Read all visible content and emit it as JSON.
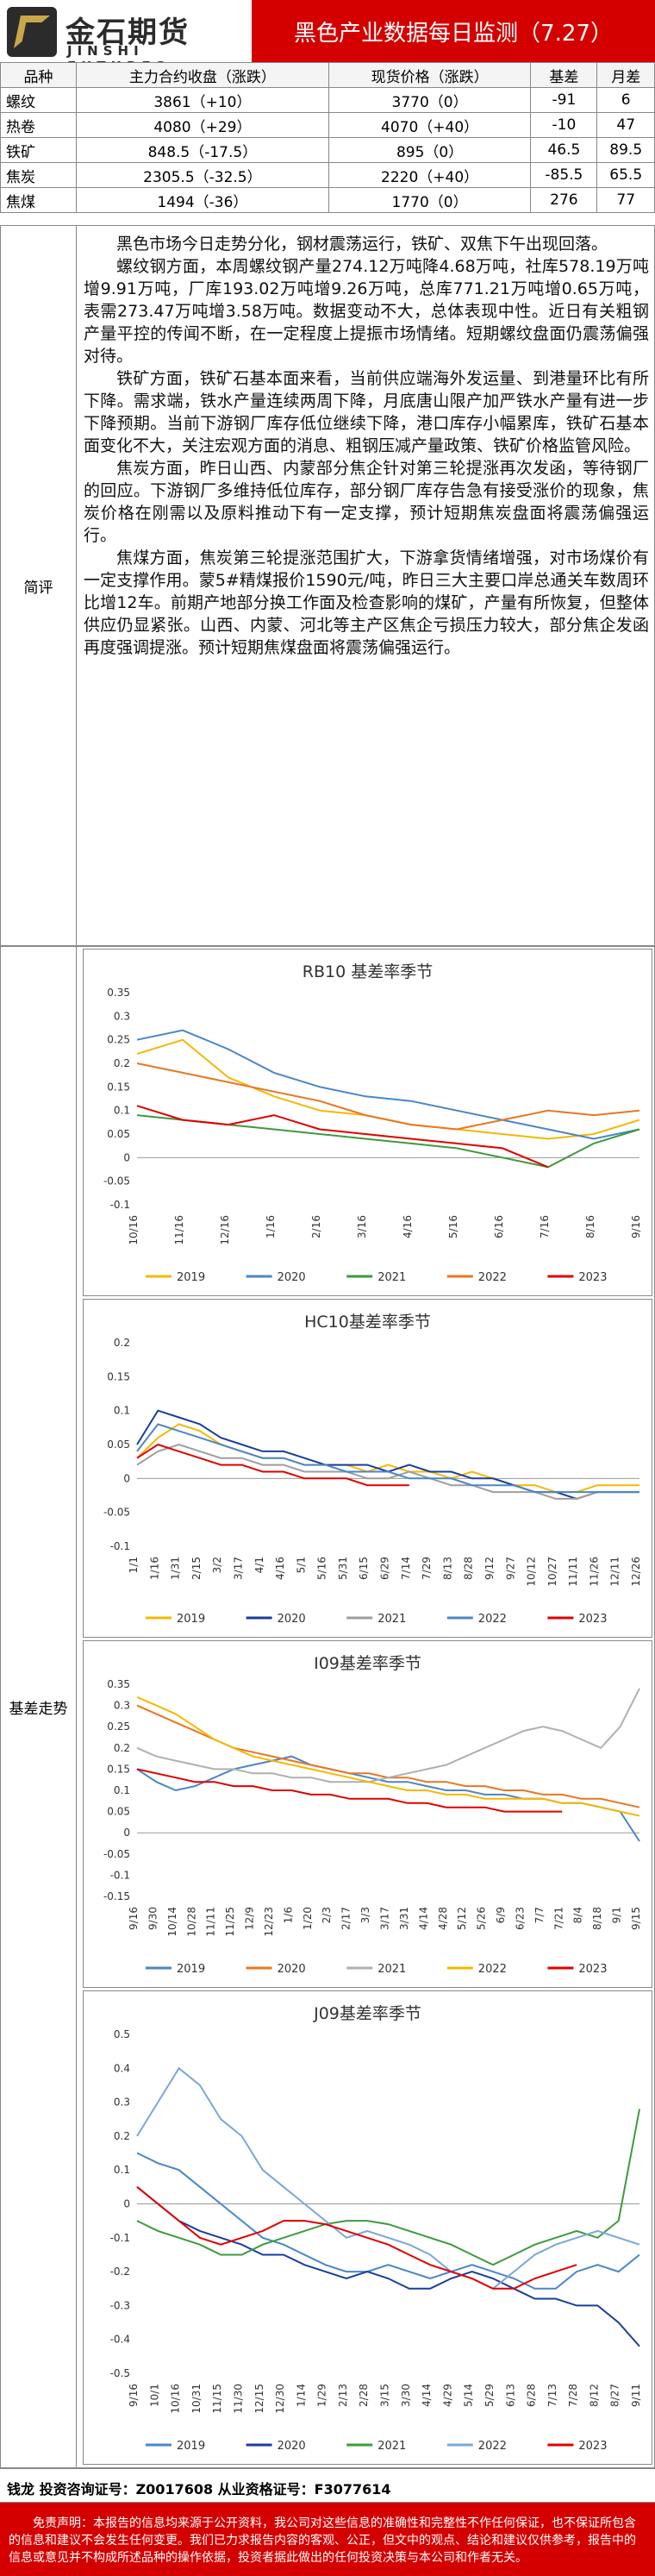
{
  "header": {
    "logo_cn": "金石期货",
    "logo_en": "JINSHI FUTURES",
    "title": "黑色产业数据每日监测（7.27）"
  },
  "price_table": {
    "headers": [
      "品种",
      "主力合约收盘（涨跌）",
      "现货价格（涨跌）",
      "基差",
      "月差"
    ],
    "rows": [
      [
        "螺纹",
        "3861（+10）",
        "3770（0）",
        "-91",
        "6"
      ],
      [
        "热卷",
        "4080（+29）",
        "4070（+40）",
        "-10",
        "47"
      ],
      [
        "铁矿",
        "848.5（-17.5）",
        "895（0）",
        "46.5",
        "89.5"
      ],
      [
        "焦炭",
        "2305.5（-32.5）",
        "2220（+40）",
        "-85.5",
        "65.5"
      ],
      [
        "焦煤",
        "1494（-36）",
        "1770（0）",
        "276",
        "77"
      ]
    ]
  },
  "commentary": {
    "label": "简评",
    "paragraphs": [
      "黑色市场今日走势分化，钢材震荡运行，铁矿、双焦下午出现回落。",
      "螺纹钢方面，本周螺纹钢产量274.12万吨降4.68万吨，社库578.19万吨增9.91万吨，厂库193.02万吨增9.26万吨，总库771.21万吨增0.65万吨，表需273.47万吨增3.58万吨。数据变动不大，总体表现中性。近日有关粗钢产量平控的传闻不断，在一定程度上提振市场情绪。短期螺纹盘面仍震荡偏强对待。",
      "铁矿方面，铁矿石基本面来看，当前供应端海外发运量、到港量环比有所下降。需求端，铁水产量连续两周下降，月底唐山限产加严铁水产量有进一步下降预期。当前下游钢厂库存低位继续下降，港口库存小幅累库，铁矿石基本面变化不大，关注宏观方面的消息、粗钢压减产量政策、铁矿价格监管风险。",
      "焦炭方面，昨日山西、内蒙部分焦企针对第三轮提涨再次发函，等待钢厂的回应。下游钢厂多维持低位库存，部分钢厂库存告急有接受涨价的现象，焦炭价格在刚需以及原料推动下有一定支撑，预计短期焦炭盘面将震荡偏强运行。",
      "焦煤方面，焦炭第三轮提涨范围扩大，下游拿货情绪增强，对市场煤价有一定支撑作用。蒙5#精煤报价1590元/吨，昨日三大主要口岸总通关车数周环比增12车。前期产地部分换工作面及检查影响的煤矿，产量有所恢复，但整体供应仍显紧张。山西、内蒙、河北等主产区焦企亏损压力较大，部分焦企发函再度强调提涨。预计短期焦煤盘面将震荡偏强运行。"
    ]
  },
  "basis": {
    "label": "基差走势"
  },
  "chart_data": [
    {
      "type": "line",
      "title": "RB10 基差率季节",
      "ylim": [
        -0.1,
        0.35
      ],
      "yticks": [
        "0.35",
        "0.3",
        "0.25",
        "0.2",
        "0.15",
        "0.1",
        "0.05",
        "0",
        "-0.05",
        "-0.1"
      ],
      "x": [
        "10/16",
        "11/16",
        "12/16",
        "1/16",
        "2/16",
        "3/16",
        "4/16",
        "5/16",
        "6/16",
        "7/16",
        "8/16",
        "9/16"
      ],
      "series": [
        {
          "name": "2019",
          "color": "#f5b800",
          "values": [
            0.22,
            0.25,
            0.17,
            0.13,
            0.1,
            0.09,
            0.07,
            0.06,
            0.05,
            0.04,
            0.05,
            0.08
          ]
        },
        {
          "name": "2020",
          "color": "#4a86c8",
          "values": [
            0.25,
            0.27,
            0.23,
            0.18,
            0.15,
            0.13,
            0.12,
            0.1,
            0.08,
            0.06,
            0.04,
            0.06
          ]
        },
        {
          "name": "2021",
          "color": "#3e9a3e",
          "values": [
            0.09,
            0.08,
            0.07,
            0.06,
            0.05,
            0.04,
            0.03,
            0.02,
            0.0,
            -0.02,
            0.03,
            0.06
          ]
        },
        {
          "name": "2022",
          "color": "#e87722",
          "values": [
            0.2,
            0.18,
            0.16,
            0.14,
            0.12,
            0.09,
            0.07,
            0.06,
            0.08,
            0.1,
            0.09,
            0.1
          ]
        },
        {
          "name": "2023",
          "color": "#e00000",
          "values": [
            0.11,
            0.08,
            0.07,
            0.09,
            0.06,
            0.05,
            0.04,
            0.03,
            0.02,
            -0.02,
            null,
            null
          ]
        }
      ]
    },
    {
      "type": "line",
      "title": "HC10基差率季节",
      "ylim": [
        -0.1,
        0.2
      ],
      "yticks": [
        "0.2",
        "0.15",
        "0.1",
        "0.05",
        "0",
        "-0.05",
        "-0.1"
      ],
      "x": [
        "1/1",
        "1/16",
        "1/31",
        "2/15",
        "3/2",
        "3/17",
        "4/1",
        "4/16",
        "5/1",
        "5/16",
        "5/31",
        "6/15",
        "6/29",
        "7/14",
        "7/29",
        "8/13",
        "8/28",
        "9/12",
        "9/27",
        "10/12",
        "10/27",
        "11/11",
        "11/26",
        "12/11",
        "12/26"
      ],
      "series": [
        {
          "name": "2019",
          "color": "#f5b800",
          "values": [
            0.03,
            0.06,
            0.08,
            0.07,
            0.05,
            0.04,
            0.03,
            0.03,
            0.02,
            0.02,
            0.02,
            0.01,
            0.02,
            0.01,
            0.01,
            0.0,
            0.01,
            0.0,
            -0.01,
            -0.01,
            -0.02,
            -0.02,
            -0.01,
            -0.01,
            -0.01
          ]
        },
        {
          "name": "2020",
          "color": "#1a3e9e",
          "values": [
            0.05,
            0.1,
            0.09,
            0.08,
            0.06,
            0.05,
            0.04,
            0.04,
            0.03,
            0.02,
            0.02,
            0.02,
            0.01,
            0.02,
            0.01,
            0.01,
            0.0,
            0.0,
            -0.01,
            -0.02,
            -0.02,
            -0.03,
            -0.02,
            -0.02,
            -0.02
          ]
        },
        {
          "name": "2021",
          "color": "#9e9e9e",
          "values": [
            0.02,
            0.04,
            0.05,
            0.04,
            0.03,
            0.03,
            0.02,
            0.02,
            0.01,
            0.01,
            0.01,
            0.0,
            0.0,
            0.01,
            0.0,
            -0.01,
            -0.01,
            -0.02,
            -0.02,
            -0.02,
            -0.03,
            -0.03,
            -0.02,
            -0.02,
            -0.02
          ]
        },
        {
          "name": "2022",
          "color": "#4a86c8",
          "values": [
            0.04,
            0.08,
            0.07,
            0.06,
            0.05,
            0.04,
            0.03,
            0.03,
            0.02,
            0.02,
            0.01,
            0.01,
            0.01,
            0.0,
            0.0,
            0.0,
            -0.01,
            -0.01,
            -0.01,
            -0.02,
            -0.02,
            -0.02,
            -0.02,
            -0.02,
            -0.02
          ]
        },
        {
          "name": "2023",
          "color": "#e00000",
          "values": [
            0.03,
            0.05,
            0.04,
            0.03,
            0.02,
            0.02,
            0.01,
            0.01,
            0.0,
            0.0,
            0.0,
            -0.01,
            -0.01,
            -0.01,
            null,
            null,
            null,
            null,
            null,
            null,
            null,
            null,
            null,
            null,
            null
          ]
        }
      ]
    },
    {
      "type": "line",
      "title": "I09基差率季节",
      "ylim": [
        -0.15,
        0.35
      ],
      "yticks": [
        "0.35",
        "0.3",
        "0.25",
        "0.2",
        "0.15",
        "0.1",
        "0.05",
        "0",
        "-0.05",
        "-0.1",
        "-0.15"
      ],
      "x": [
        "9/16",
        "9/30",
        "10/14",
        "10/28",
        "11/11",
        "11/25",
        "12/9",
        "12/23",
        "1/6",
        "1/20",
        "2/3",
        "2/17",
        "3/3",
        "3/17",
        "3/31",
        "4/14",
        "4/28",
        "5/12",
        "5/26",
        "6/9",
        "6/23",
        "7/7",
        "7/21",
        "8/4",
        "8/18",
        "9/1",
        "9/15"
      ],
      "series": [
        {
          "name": "2019",
          "color": "#4a86c8",
          "values": [
            0.15,
            0.12,
            0.1,
            0.11,
            0.13,
            0.15,
            0.16,
            0.17,
            0.18,
            0.16,
            0.15,
            0.14,
            0.13,
            0.12,
            0.12,
            0.11,
            0.1,
            0.1,
            0.09,
            0.09,
            0.08,
            0.08,
            0.07,
            0.07,
            0.06,
            0.05,
            -0.02
          ]
        },
        {
          "name": "2020",
          "color": "#e87722",
          "values": [
            0.3,
            0.28,
            0.26,
            0.24,
            0.22,
            0.2,
            0.19,
            0.18,
            0.17,
            0.16,
            0.15,
            0.14,
            0.14,
            0.13,
            0.13,
            0.12,
            0.12,
            0.11,
            0.11,
            0.1,
            0.1,
            0.09,
            0.09,
            0.08,
            0.08,
            0.07,
            0.06
          ]
        },
        {
          "name": "2021",
          "color": "#b0b0b0",
          "values": [
            0.2,
            0.18,
            0.17,
            0.16,
            0.15,
            0.15,
            0.14,
            0.14,
            0.13,
            0.13,
            0.12,
            0.12,
            0.12,
            0.13,
            0.14,
            0.15,
            0.16,
            0.18,
            0.2,
            0.22,
            0.24,
            0.25,
            0.24,
            0.22,
            0.2,
            0.25,
            0.34
          ]
        },
        {
          "name": "2022",
          "color": "#f5b800",
          "values": [
            0.32,
            0.3,
            0.28,
            0.25,
            0.22,
            0.2,
            0.18,
            0.17,
            0.16,
            0.15,
            0.14,
            0.13,
            0.12,
            0.11,
            0.1,
            0.1,
            0.09,
            0.09,
            0.08,
            0.08,
            0.08,
            0.08,
            0.07,
            0.07,
            0.06,
            0.05,
            0.04
          ]
        },
        {
          "name": "2023",
          "color": "#e00000",
          "values": [
            0.15,
            0.14,
            0.13,
            0.12,
            0.12,
            0.11,
            0.11,
            0.1,
            0.1,
            0.09,
            0.09,
            0.08,
            0.08,
            0.08,
            0.07,
            0.07,
            0.06,
            0.06,
            0.06,
            0.05,
            0.05,
            0.05,
            0.05,
            null,
            null,
            null,
            null
          ]
        }
      ]
    },
    {
      "type": "line",
      "title": "J09基差率季节",
      "ylim": [
        -0.5,
        0.5
      ],
      "yticks": [
        "0.5",
        "0.4",
        "0.3",
        "0.2",
        "0.1",
        "0",
        "-0.1",
        "-0.2",
        "-0.3",
        "-0.4",
        "-0.5"
      ],
      "x": [
        "9/16",
        "10/1",
        "10/16",
        "10/31",
        "11/15",
        "11/30",
        "12/15",
        "12/30",
        "1/14",
        "1/29",
        "2/13",
        "2/28",
        "3/15",
        "3/30",
        "4/14",
        "4/29",
        "5/14",
        "5/29",
        "6/13",
        "6/28",
        "7/13",
        "7/28",
        "8/12",
        "8/27",
        "9/11"
      ],
      "series": [
        {
          "name": "2019",
          "color": "#4a86c8",
          "values": [
            0.15,
            0.12,
            0.1,
            0.05,
            0.0,
            -0.05,
            -0.1,
            -0.12,
            -0.15,
            -0.18,
            -0.2,
            -0.2,
            -0.18,
            -0.2,
            -0.22,
            -0.2,
            -0.18,
            -0.2,
            -0.22,
            -0.25,
            -0.25,
            -0.2,
            -0.18,
            -0.2,
            -0.15
          ]
        },
        {
          "name": "2020",
          "color": "#1a3e9e",
          "values": [
            0.05,
            0.0,
            -0.05,
            -0.08,
            -0.1,
            -0.12,
            -0.15,
            -0.15,
            -0.18,
            -0.2,
            -0.22,
            -0.2,
            -0.22,
            -0.25,
            -0.25,
            -0.22,
            -0.2,
            -0.22,
            -0.25,
            -0.28,
            -0.28,
            -0.3,
            -0.3,
            -0.35,
            -0.42
          ]
        },
        {
          "name": "2021",
          "color": "#3e9a3e",
          "values": [
            -0.05,
            -0.08,
            -0.1,
            -0.12,
            -0.15,
            -0.15,
            -0.12,
            -0.1,
            -0.08,
            -0.06,
            -0.05,
            -0.05,
            -0.06,
            -0.08,
            -0.1,
            -0.12,
            -0.15,
            -0.18,
            -0.15,
            -0.12,
            -0.1,
            -0.08,
            -0.1,
            -0.05,
            0.28
          ]
        },
        {
          "name": "2022",
          "color": "#7aa7d8",
          "values": [
            0.2,
            0.3,
            0.4,
            0.35,
            0.25,
            0.2,
            0.1,
            0.05,
            0.0,
            -0.05,
            -0.1,
            -0.08,
            -0.1,
            -0.12,
            -0.15,
            -0.2,
            -0.22,
            -0.25,
            -0.2,
            -0.15,
            -0.12,
            -0.1,
            -0.08,
            -0.1,
            -0.12
          ]
        },
        {
          "name": "2023",
          "color": "#e00000",
          "values": [
            0.05,
            0.0,
            -0.05,
            -0.1,
            -0.12,
            -0.1,
            -0.08,
            -0.05,
            -0.05,
            -0.06,
            -0.08,
            -0.1,
            -0.12,
            -0.15,
            -0.18,
            -0.2,
            -0.22,
            -0.25,
            -0.25,
            -0.22,
            -0.2,
            -0.18,
            null,
            null,
            null
          ]
        }
      ]
    }
  ],
  "footer": {
    "contact": "钱龙 投资咨询证号：Z0017608 从业资格证号：F3077614",
    "disclaimer": "免责声明：本报告的信息均来源于公开资料，我公司对这些信息的准确性和完整性不作任何保证，也不保证所包含的信息和建议不会发生任何变更。我们已力求报告内容的客观、公正，但文中的观点、结论和建议仅供参考，报告中的信息或意见并不构成所述品种的操作依据，投资者据此做出的任何投资决策与本公司和作者无关。"
  }
}
